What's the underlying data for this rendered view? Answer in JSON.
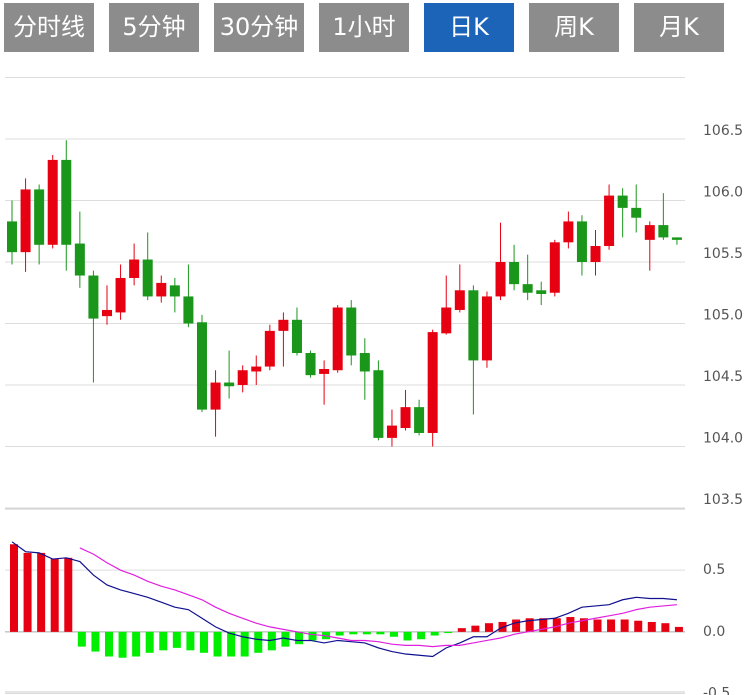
{
  "tabs": [
    "分时线",
    "5分钟",
    "30分钟",
    "1小时",
    "日K",
    "周K",
    "月K"
  ],
  "active_tab": 4,
  "chart_data": [
    {
      "type": "candlestick",
      "open": [
        105.83,
        105.58,
        106.09,
        105.64,
        106.33,
        105.65,
        105.39,
        105.06,
        105.09,
        105.37,
        105.52,
        105.22,
        105.31,
        105.22,
        105.01,
        104.3,
        104.52,
        104.5,
        104.61,
        104.65,
        104.94,
        105.03,
        104.76,
        104.59,
        104.62,
        105.13,
        104.76,
        104.62,
        104.07,
        104.15,
        104.32,
        104.11,
        104.92,
        105.11,
        105.27,
        104.7,
        105.22,
        105.5,
        105.32,
        105.27,
        105.25,
        105.66,
        105.83,
        105.5,
        105.63,
        106.04,
        105.94,
        105.68,
        105.8,
        105.7
      ],
      "high": [
        106.0,
        106.18,
        106.13,
        106.37,
        106.49,
        105.91,
        105.43,
        105.31,
        105.48,
        105.65,
        105.74,
        105.39,
        105.37,
        105.48,
        105.07,
        104.62,
        104.78,
        104.66,
        104.74,
        104.99,
        105.09,
        105.13,
        104.78,
        104.7,
        105.15,
        105.19,
        104.88,
        104.7,
        104.3,
        104.46,
        104.38,
        104.95,
        105.39,
        105.48,
        105.31,
        105.26,
        105.82,
        105.64,
        105.56,
        105.34,
        105.68,
        105.91,
        105.88,
        105.76,
        106.13,
        106.1,
        106.13,
        105.83,
        106.06,
        105.7
      ],
      "low": [
        105.48,
        105.42,
        105.48,
        105.61,
        105.43,
        105.29,
        104.52,
        104.99,
        105.03,
        105.31,
        105.19,
        105.17,
        105.09,
        104.97,
        104.28,
        104.08,
        104.39,
        104.44,
        104.5,
        104.62,
        104.65,
        104.74,
        104.56,
        104.34,
        104.6,
        104.66,
        104.38,
        104.05,
        104.0,
        104.13,
        104.09,
        104.0,
        104.91,
        105.09,
        104.26,
        104.64,
        105.19,
        105.27,
        105.19,
        105.15,
        105.22,
        105.61,
        105.39,
        105.39,
        105.6,
        105.7,
        105.74,
        105.43,
        105.68,
        105.64
      ],
      "close": [
        105.58,
        106.09,
        105.64,
        106.33,
        105.64,
        105.39,
        105.04,
        105.11,
        105.37,
        105.52,
        105.22,
        105.33,
        105.22,
        105.0,
        104.3,
        104.52,
        104.49,
        104.62,
        104.65,
        104.94,
        105.03,
        104.76,
        104.58,
        104.63,
        105.13,
        104.74,
        104.61,
        104.07,
        104.17,
        104.32,
        104.11,
        104.93,
        105.13,
        105.27,
        104.7,
        105.22,
        105.5,
        105.32,
        105.25,
        105.24,
        105.66,
        105.83,
        105.5,
        105.63,
        106.04,
        105.94,
        105.86,
        105.8,
        105.7,
        105.68
      ],
      "up_color": "#e60012",
      "down_color": "#1a961a",
      "ylim": [
        103.5,
        107.0
      ],
      "yticks": [
        103.5,
        {
          "value": 104.0,
          "label": "104.0"
        },
        104.5,
        {
          "value": 105.0,
          "label": "105.0"
        },
        105.5,
        {
          "value": 106.0,
          "label": "106.0"
        },
        106.5
      ],
      "grid": true
    },
    {
      "type": "macd",
      "histogram": {
        "values": [
          0.71,
          0.64,
          0.64,
          0.59,
          0.6,
          -0.12,
          -0.16,
          -0.2,
          -0.21,
          -0.2,
          -0.17,
          -0.15,
          -0.13,
          -0.15,
          -0.17,
          -0.2,
          -0.2,
          -0.2,
          -0.17,
          -0.15,
          -0.12,
          -0.1,
          -0.07,
          -0.06,
          -0.03,
          -0.02,
          -0.02,
          -0.02,
          -0.04,
          -0.07,
          -0.06,
          -0.03,
          -0.01,
          0.03,
          0.05,
          0.07,
          0.08,
          0.1,
          0.11,
          0.11,
          0.11,
          0.12,
          0.11,
          0.1,
          0.1,
          0.1,
          0.09,
          0.08,
          0.07,
          0.04
        ],
        "up_color": "#e60012",
        "down_color": "#00ee00"
      },
      "series": [
        {
          "color": "#101090",
          "values": [
            0.73,
            0.65,
            0.64,
            0.59,
            0.6,
            0.57,
            0.46,
            0.38,
            0.34,
            0.31,
            0.28,
            0.24,
            0.2,
            0.18,
            0.11,
            0.04,
            -0.01,
            -0.04,
            -0.06,
            -0.07,
            -0.05,
            -0.07,
            -0.07,
            -0.09,
            -0.07,
            -0.08,
            -0.09,
            -0.13,
            -0.16,
            -0.18,
            -0.19,
            -0.2,
            -0.13,
            -0.09,
            -0.04,
            -0.04,
            0.03,
            0.07,
            0.09,
            0.1,
            0.11,
            0.15,
            0.2,
            0.21,
            0.22,
            0.26,
            0.28,
            0.27,
            0.27,
            0.26
          ]
        },
        {
          "color": "#e020e0",
          "values": [
            null,
            null,
            null,
            null,
            null,
            0.68,
            0.63,
            0.56,
            0.5,
            0.46,
            0.41,
            0.37,
            0.34,
            0.3,
            0.26,
            0.2,
            0.15,
            0.11,
            0.07,
            0.04,
            0.02,
            0.0,
            -0.02,
            -0.03,
            -0.05,
            -0.07,
            -0.07,
            -0.08,
            -0.1,
            -0.11,
            -0.11,
            -0.12,
            -0.11,
            -0.11,
            -0.09,
            -0.07,
            -0.05,
            -0.02,
            0.0,
            0.02,
            0.04,
            0.07,
            0.09,
            0.11,
            0.13,
            0.15,
            0.18,
            0.2,
            0.21,
            0.22
          ]
        }
      ],
      "ylim": [
        -0.5,
        1.0
      ],
      "yticks": [
        -0.5,
        {
          "value": 0.0,
          "label": "0.0"
        },
        0.5
      ],
      "grid": true
    }
  ]
}
